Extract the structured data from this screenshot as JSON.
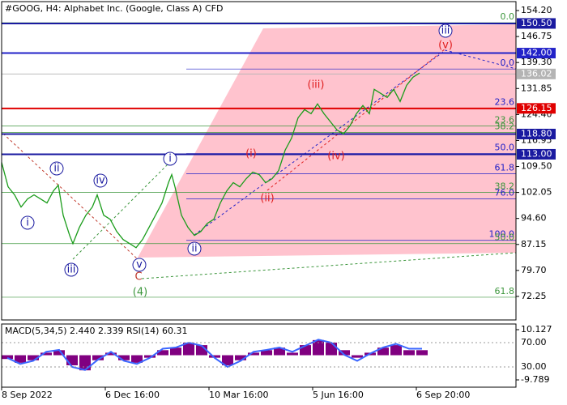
{
  "chart_data": [
    {
      "type": "line",
      "title": "#GOOG, H4:  Alphabet Inc. (Google, Class A) CFD",
      "color": "#1a9c1a",
      "x": [
        0,
        8,
        16,
        24,
        32,
        40,
        48,
        56,
        64,
        70,
        76,
        84,
        88,
        96,
        104,
        112,
        118,
        126,
        134,
        142,
        150,
        158,
        166,
        174,
        182,
        190,
        198,
        206,
        210,
        214,
        222,
        230,
        238,
        246,
        254,
        262,
        270,
        278,
        286,
        294,
        302,
        310,
        318,
        326,
        334,
        342,
        350,
        358,
        366,
        374,
        382,
        390,
        398,
        406,
        414,
        422,
        430,
        438,
        446,
        454,
        460,
        468,
        476,
        484,
        492,
        500,
        508,
        516
      ],
      "values": [
        110.67,
        103.68,
        101.35,
        97.86,
        100.19,
        101.35,
        100.19,
        99.03,
        102.52,
        104.15,
        95.53,
        89.71,
        87.39,
        92.04,
        95.53,
        97.86,
        101.35,
        95.53,
        94.37,
        90.88,
        88.55,
        87.39,
        86.22,
        88.55,
        92.04,
        95.53,
        99.03,
        104.85,
        107.17,
        103.68,
        95.53,
        92.04,
        89.71,
        90.88,
        93.21,
        94.37,
        99.03,
        102.52,
        104.85,
        103.68,
        106.01,
        107.87,
        107.17,
        104.85,
        106.01,
        108.34,
        114.16,
        117.65,
        123.47,
        125.8,
        124.63,
        127.43,
        124.63,
        122.31,
        119.98,
        118.81,
        121.14,
        124.63,
        126.96,
        124.63,
        131.62,
        130.45,
        129.29,
        131.62,
        128.13,
        132.78,
        135.11,
        136.27
      ],
      "xlim": [
        0,
        635
      ],
      "xticks": [
        {
          "value": 0,
          "label": "8 Sep 2022"
        },
        {
          "value": 128,
          "label": "6 Dec 16:00"
        },
        {
          "value": 256,
          "label": "10 Mar 16:00"
        },
        {
          "value": 384,
          "label": "5 Jun 16:00"
        },
        {
          "value": 512,
          "label": "6 Sep 20:00"
        }
      ],
      "ylim": [
        65.5,
        156.76
      ],
      "yticks": [
        {
          "value": 154.2,
          "label": "154.20"
        },
        {
          "value": 146.75,
          "label": "146.75"
        },
        {
          "value": 139.3,
          "label": "139.30"
        },
        {
          "value": 131.85,
          "label": "131.85"
        },
        {
          "value": 124.4,
          "label": "124.40"
        },
        {
          "value": 116.95,
          "label": "116.95"
        },
        {
          "value": 109.5,
          "label": "109.50"
        },
        {
          "value": 102.05,
          "label": "102.05"
        },
        {
          "value": 94.6,
          "label": "94.60"
        },
        {
          "value": 87.15,
          "label": "87.15"
        },
        {
          "value": 79.7,
          "label": "79.70"
        },
        {
          "value": 72.25,
          "label": "72.25"
        }
      ],
      "levels": [
        {
          "value": 150.5,
          "label": "150.50",
          "color": "#1a1aa0"
        },
        {
          "value": 142.0,
          "label": "142.00",
          "color": "#2222c8"
        },
        {
          "value": 136.02,
          "label": "136.02",
          "color": "#b4b4b4"
        },
        {
          "value": 126.15,
          "label": "126.15",
          "color": "#e00000"
        },
        {
          "value": 118.8,
          "label": "118.80",
          "color": "#1a1aa0"
        },
        {
          "value": 113.0,
          "label": "113.00",
          "color": "#1a1aa0"
        }
      ],
      "fib_levels": [
        {
          "label": "0.0",
          "price": 150.71,
          "color": "#3c963c"
        },
        {
          "label": "0.0",
          "price": 137.44,
          "color": "#2222c8"
        },
        {
          "label": "23.6",
          "price": 126.26,
          "color": "#2222c8"
        },
        {
          "label": "23.6",
          "price": 121.14,
          "color": "#3c963c"
        },
        {
          "label": "38.2",
          "price": 119.28,
          "color": "#3c963c"
        },
        {
          "label": "50.0",
          "price": 113.2,
          "color": "#2222c8"
        },
        {
          "label": "61.8",
          "price": 107.41,
          "color": "#2222c8"
        },
        {
          "label": "38.2",
          "price": 102.05,
          "color": "#3c963c"
        },
        {
          "label": "76.0",
          "price": 100.19,
          "color": "#2222c8"
        },
        {
          "label": "100.0",
          "price": 88.32,
          "color": "#2222c8"
        },
        {
          "label": "50.0",
          "price": 87.39,
          "color": "#3c963c"
        },
        {
          "label": "61.8",
          "price": 72.02,
          "color": "#3c963c"
        }
      ],
      "annotations": [
        {
          "text": "i",
          "color": "#1a1aa0"
        },
        {
          "text": "ii",
          "color": "#1a1aa0"
        },
        {
          "text": "iii",
          "color": "#1a1aa0"
        },
        {
          "text": "iv",
          "color": "#1a1aa0"
        },
        {
          "text": "v",
          "color": "#1a1aa0"
        },
        {
          "text": "i",
          "color": "#1a1aa0"
        },
        {
          "text": "ii",
          "color": "#1a1aa0"
        },
        {
          "text": "iii",
          "color": "#1a1aa0"
        },
        {
          "text": "C",
          "color": "#c0392b"
        },
        {
          "text": "(4)",
          "color": "#3c963c"
        },
        {
          "text": "(i)",
          "color": "#e02020"
        },
        {
          "text": "(ii)",
          "color": "#e02020"
        },
        {
          "text": "(iii)",
          "color": "#e02020"
        },
        {
          "text": "(iv)",
          "color": "#e02020"
        },
        {
          "text": "(v)",
          "color": "#e02020"
        }
      ]
    },
    {
      "type": "macd",
      "title": "MACD(5,34,5) 2.440 2.339 RSI(14) 60.31",
      "x": [
        0,
        16,
        32,
        48,
        64,
        80,
        96,
        112,
        128,
        144,
        160,
        176,
        192,
        208,
        224,
        240,
        256,
        272,
        288,
        304,
        320,
        336,
        352,
        368,
        384,
        400,
        416,
        432,
        448,
        464,
        480,
        496,
        512
      ],
      "series": [
        {
          "color": "#800080",
          "values": [
            -1.5,
            -3,
            -2,
            1,
            2,
            -4,
            -6,
            -2,
            1,
            -2,
            -3,
            -1,
            2,
            3,
            5,
            4,
            -1,
            -4,
            -2,
            1,
            2,
            3,
            1,
            4,
            6,
            5,
            2,
            -1,
            1,
            3,
            4,
            2,
            2
          ]
        },
        {
          "color": "#3a66ff",
          "axis": "y2",
          "values": [
            45,
            35,
            40,
            55,
            58,
            30,
            25,
            42,
            55,
            40,
            35,
            45,
            60,
            62,
            70,
            65,
            45,
            30,
            40,
            55,
            58,
            62,
            55,
            65,
            75,
            70,
            50,
            40,
            52,
            62,
            68,
            60,
            60
          ]
        }
      ],
      "ylim": [
        -12.68,
        12.38
      ],
      "yticks": [
        10.127,
        -9.789
      ],
      "y2lim": [
        -3.3,
        100.7
      ],
      "y2ticks": [
        {
          "value": 70,
          "label": "70.00"
        },
        {
          "value": 30,
          "label": "30.00"
        }
      ]
    }
  ]
}
